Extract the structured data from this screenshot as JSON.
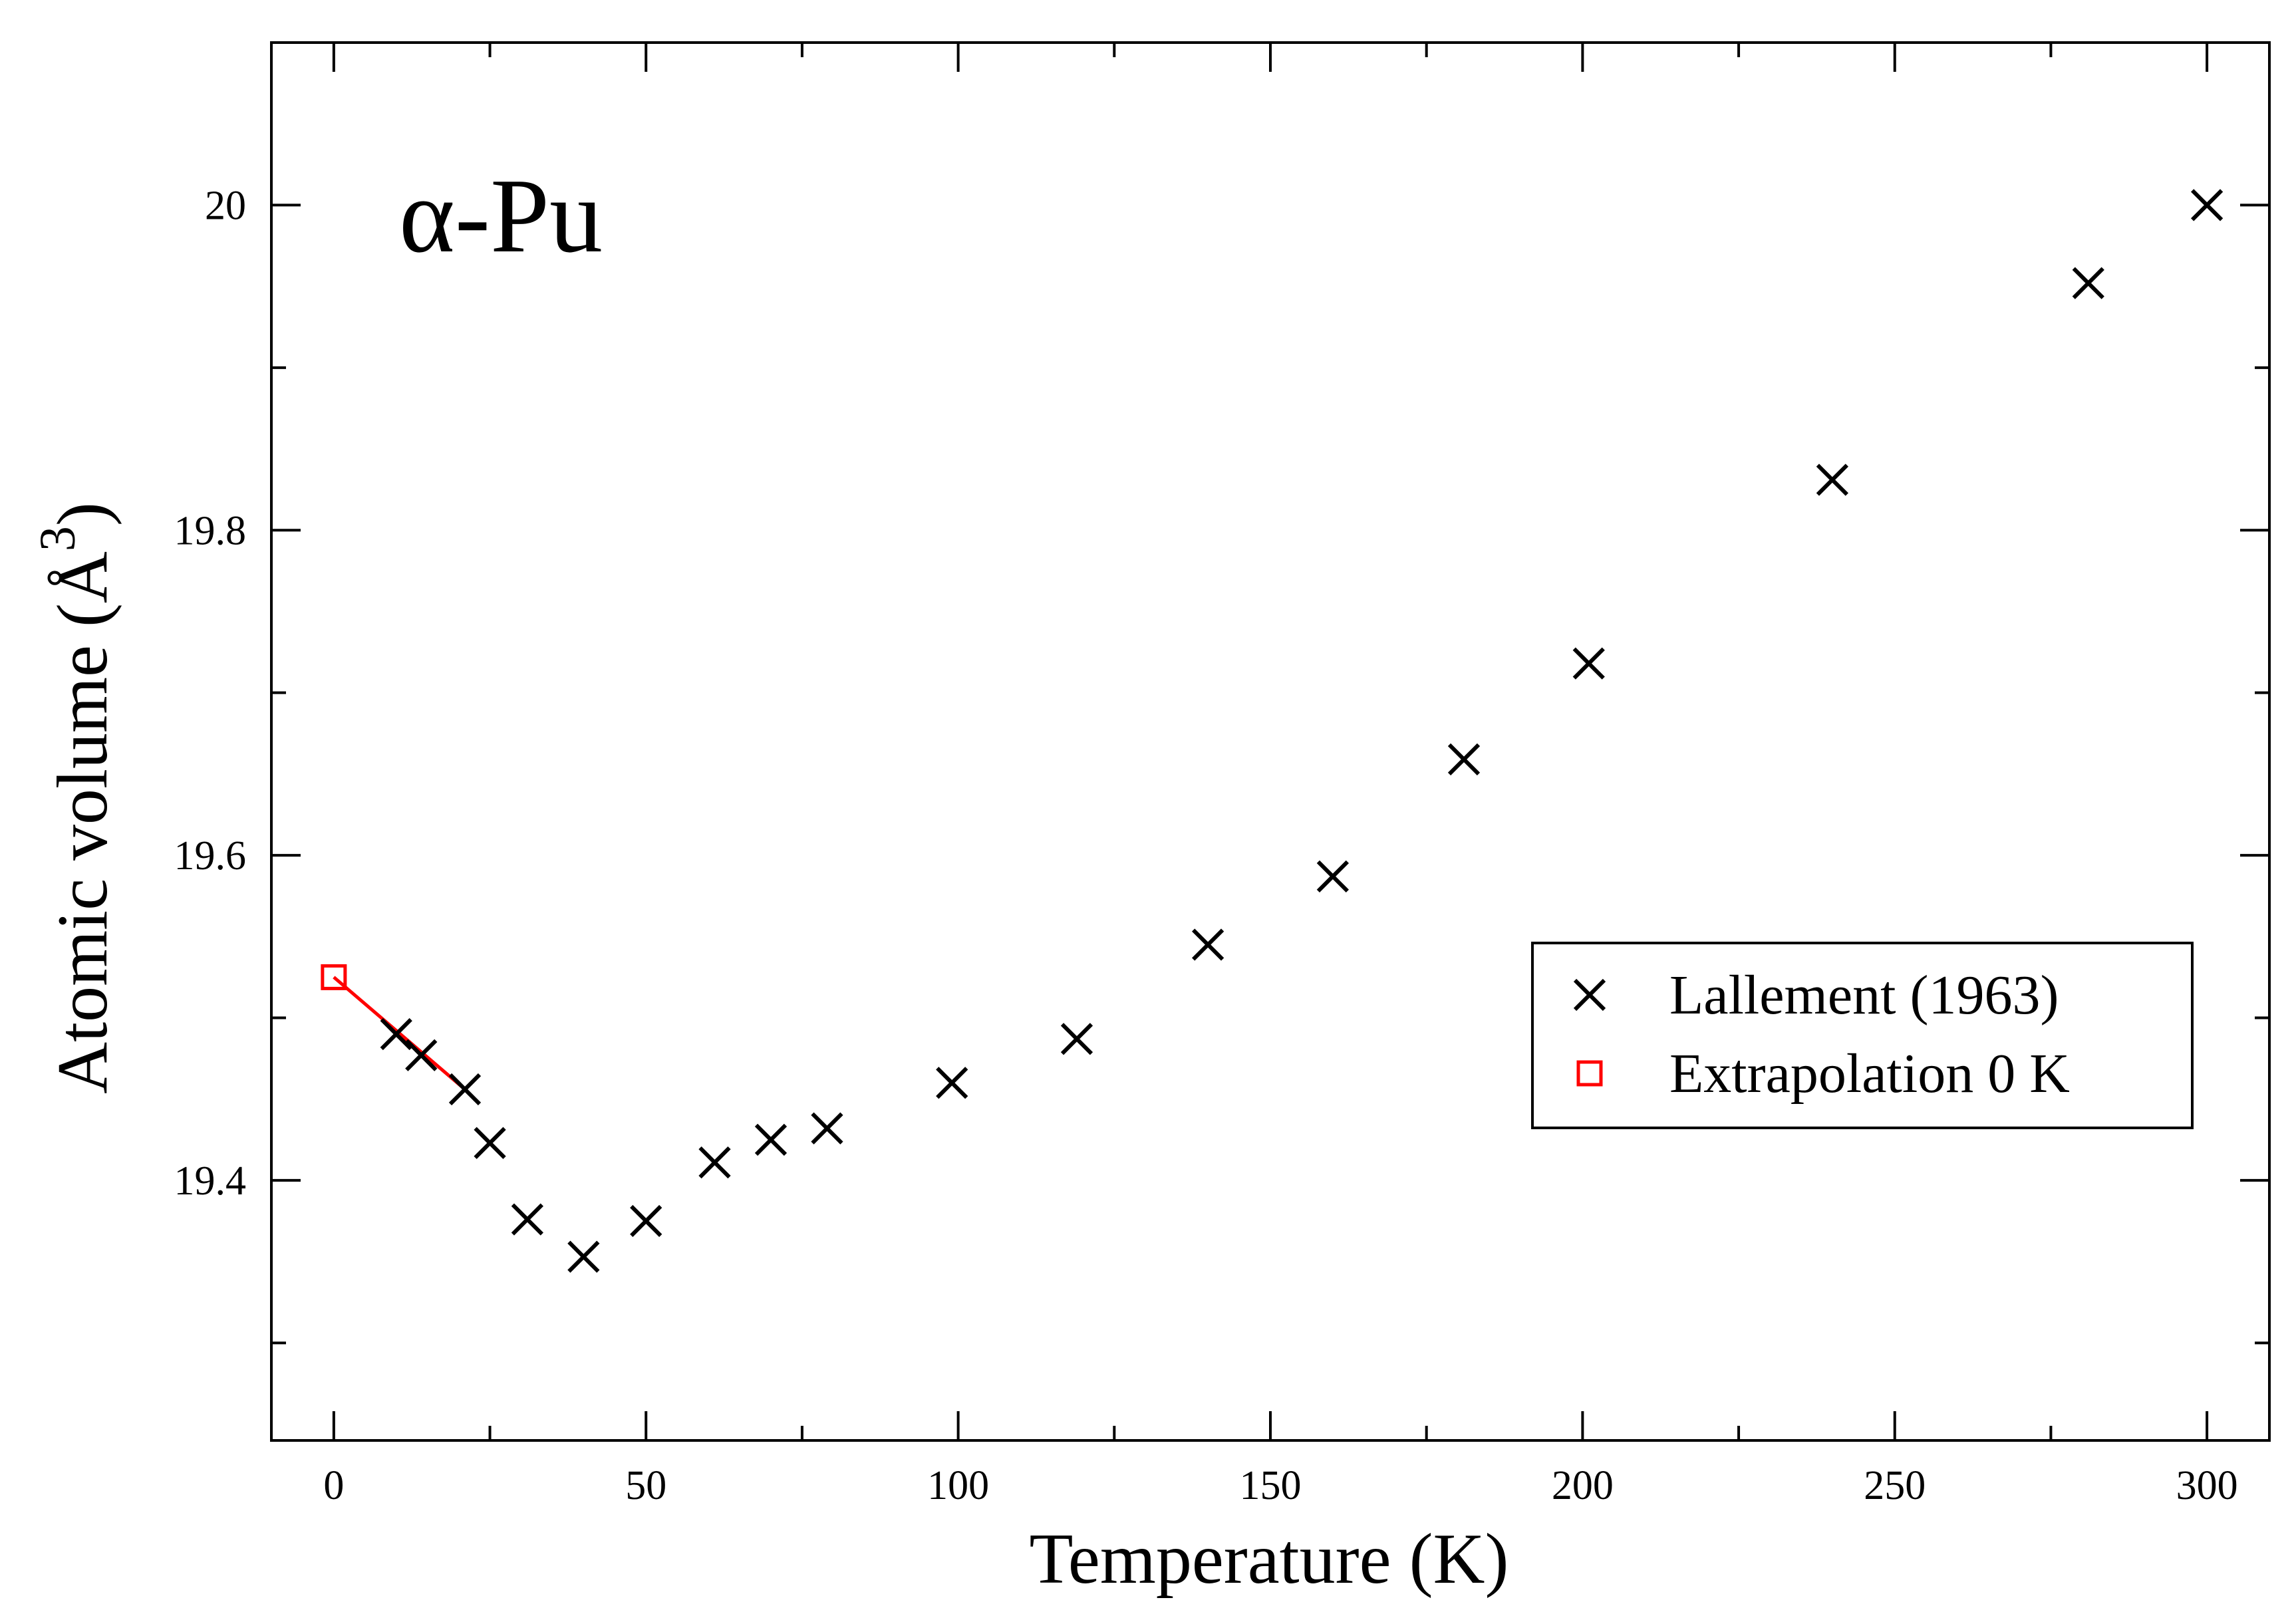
{
  "chart_data": {
    "type": "scatter",
    "title": "",
    "annotation": "α-Pu",
    "xlabel": "Temperature (K)",
    "ylabel": {
      "prefix": "Atomic volume (",
      "unit": "Å",
      "superscript": "3",
      "suffix": ")"
    },
    "xlim": [
      -10,
      310
    ],
    "ylim": [
      19.24,
      20.1
    ],
    "x_ticks": [
      0,
      50,
      100,
      150,
      200,
      250,
      300
    ],
    "x_tick_labels": [
      "0",
      "50",
      "100",
      "150",
      "200",
      "250",
      "300"
    ],
    "y_ticks": [
      19.4,
      19.6,
      19.8,
      20.0
    ],
    "y_tick_labels": [
      "19.4",
      "19.6",
      "19.8",
      "20"
    ],
    "grid": false,
    "legend_position": "center-right",
    "series": [
      {
        "name": "Lallement (1963)",
        "marker": "x",
        "color": "#000000",
        "x": [
          10,
          14,
          21,
          25,
          31,
          40,
          50,
          61,
          70,
          79,
          99,
          119,
          140,
          160,
          181,
          201,
          240,
          281,
          300
        ],
        "y": [
          19.49,
          19.477,
          19.456,
          19.423,
          19.376,
          19.353,
          19.375,
          19.411,
          19.425,
          19.432,
          19.46,
          19.487,
          19.545,
          19.587,
          19.659,
          19.718,
          19.831,
          19.952,
          20.0
        ]
      },
      {
        "name": "Extrapolation 0 K",
        "marker": "square",
        "color": "#ff0000",
        "x": [
          0
        ],
        "y": [
          19.525
        ]
      }
    ],
    "extrapolation_line": {
      "color": "#ff0000",
      "x": [
        0,
        21
      ],
      "y": [
        19.525,
        19.456
      ]
    }
  }
}
